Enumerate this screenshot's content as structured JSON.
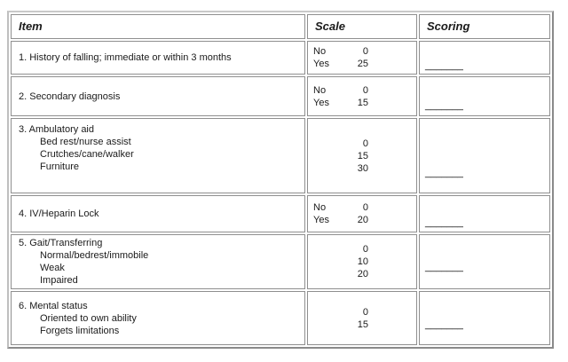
{
  "header": {
    "item": "Item",
    "scale": "Scale",
    "scoring": "Scoring"
  },
  "rows": [
    {
      "item_title": "1. History of falling; immediate or within 3 months",
      "item_sub": [],
      "scale_options": [
        {
          "label": "No",
          "value": "0"
        },
        {
          "label": "Yes",
          "value": "25"
        }
      ],
      "scoring_blank": "_______"
    },
    {
      "item_title": "2. Secondary diagnosis",
      "item_sub": [],
      "scale_options": [
        {
          "label": "No",
          "value": "0"
        },
        {
          "label": "Yes",
          "value": "15"
        }
      ],
      "scoring_blank": "_______"
    },
    {
      "item_title": "3. Ambulatory aid",
      "item_sub": [
        "Bed rest/nurse assist",
        "Crutches/cane/walker",
        "Furniture"
      ],
      "scale_options": [
        {
          "label": "",
          "value": "0"
        },
        {
          "label": "",
          "value": "15"
        },
        {
          "label": "",
          "value": "30"
        }
      ],
      "scoring_blank": "_______"
    },
    {
      "item_title": "4. IV/Heparin Lock",
      "item_sub": [],
      "scale_options": [
        {
          "label": "No",
          "value": "0"
        },
        {
          "label": "Yes",
          "value": "20"
        }
      ],
      "scoring_blank": "_______"
    },
    {
      "item_title": "5. Gait/Transferring",
      "item_sub": [
        "Normal/bedrest/immobile",
        "Weak",
        "Impaired"
      ],
      "scale_options": [
        {
          "label": "",
          "value": "0"
        },
        {
          "label": "",
          "value": "10"
        },
        {
          "label": "",
          "value": "20"
        }
      ],
      "scoring_blank": "_______"
    },
    {
      "item_title": "6. Mental status",
      "item_sub": [
        "Oriented to own ability",
        "Forgets limitations"
      ],
      "scale_options": [
        {
          "label": "",
          "value": "0"
        },
        {
          "label": "",
          "value": "15"
        }
      ],
      "scoring_blank": "_______"
    }
  ]
}
